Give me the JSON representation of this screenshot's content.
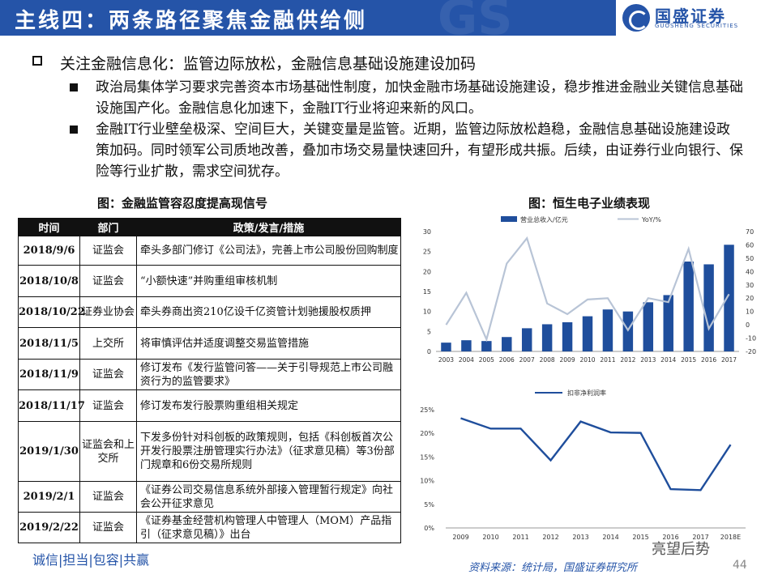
{
  "header": {
    "title": "主线四：两条路径聚焦金融供给侧",
    "logo_cn": "国盛证券",
    "logo_en": "GUOSHENG SECURITIES"
  },
  "bullets": {
    "main": "关注金融信息化：监管边际放松，金融信息基础设施建设加码",
    "sub1": "政治局集体学习要求完善资本市场基础性制度，加快金融市场基础设施建设，稳步推进金融业关键信息基础设施国产化。金融信息化加速下，金融IT行业将迎来新的风口。",
    "sub2": "金融IT行业壁垒极深、空间巨大，关键变量是监管。近期，监管边际放松趋稳，金融信息基础设施建设政策加码。同时领军公司质地改善，叠加市场交易量快速回升，有望形成共振。后续，由证券行业向银行、保险等行业扩散，需求空间犹存。"
  },
  "captions": {
    "table": "图：金融监管容忍度提高现信号",
    "chart": "图：恒生电子业绩表现"
  },
  "table": {
    "headers": [
      "时间",
      "部门",
      "政策/发言/措施"
    ],
    "rows": [
      {
        "date": "2018/9/6",
        "dept": "证监会",
        "text": "牵头多部门修订《公司法》，完善上市公司股份回购制度"
      },
      {
        "date": "2018/10/8",
        "dept": "证监会",
        "text": "“小额快速”并购重组审核机制"
      },
      {
        "date": "2018/10/22",
        "dept": "证券业协会",
        "text": "牵头券商出资210亿设千亿资管计划驰援股权质押"
      },
      {
        "date": "2018/11/5",
        "dept": "上交所",
        "text": "将审慎评估并适度调整交易监管措施"
      },
      {
        "date": "2018/11/9",
        "dept": "证监会",
        "text": "修订发布《发行监管问答——关于引导规范上市公司融资行为的监管要求》"
      },
      {
        "date": "2018/11/17",
        "dept": "证监会",
        "text": "修订发布发行股票购重组相关规定"
      },
      {
        "date": "2019/1/30",
        "dept": "证监会和上交所",
        "text": "下发多份针对科创板的政策规则，包括《科创板首次公开发行股票注册管理实行办法》（征求意见稿）等3份部门规章和6份交易所规则"
      },
      {
        "date": "2019/2/1",
        "dept": "证监会",
        "text": "《证券公司交易信息系统外部接入管理暂行规定》向社会公开征求意见"
      },
      {
        "date": "2019/2/22",
        "dept": "证监会",
        "text": "《证券基金经营机构管理人中管理人（MOM）产品指引（征求意见稿）》出台"
      }
    ]
  },
  "chart_data": [
    {
      "type": "bar",
      "categories": [
        "2003",
        "2004",
        "2005",
        "2006",
        "2007",
        "2008",
        "2009",
        "2010",
        "2011",
        "2012",
        "2013",
        "2014",
        "2015",
        "2016",
        "2017"
      ],
      "series": [
        {
          "name": "营业总收入/亿元",
          "type": "bar",
          "axis": "left",
          "color": "#1f4e9c",
          "values": [
            2.2,
            2.8,
            2.6,
            3.6,
            5.8,
            6.8,
            7.3,
            8.8,
            10.5,
            10.0,
            12.3,
            14.1,
            22.5,
            21.8,
            26.7
          ]
        },
        {
          "name": "YoY/%",
          "type": "line",
          "axis": "right",
          "color": "#b8c4d6",
          "values": [
            0,
            24,
            -11,
            46,
            65,
            16,
            8,
            19,
            20,
            -4,
            20,
            17,
            57,
            -3,
            23
          ]
        }
      ],
      "ylim_left": [
        0,
        30
      ],
      "yticks_left": [
        0,
        5,
        10,
        15,
        20,
        25,
        30
      ],
      "ylim_right": [
        -20,
        70
      ],
      "yticks_right": [
        -20,
        -10,
        0,
        10,
        20,
        30,
        40,
        50,
        60,
        70
      ],
      "legend": "top"
    },
    {
      "type": "line",
      "categories": [
        "2009",
        "2010",
        "2011",
        "2012",
        "2013",
        "2014",
        "2015",
        "2016",
        "2017",
        "2018E"
      ],
      "series": [
        {
          "name": "扣非净利润率",
          "color": "#1f4e9c",
          "values": [
            23.2,
            21.0,
            21.0,
            14.3,
            22.5,
            20.2,
            20.1,
            8.2,
            8.0,
            17.6
          ]
        }
      ],
      "ylim": [
        0,
        25
      ],
      "yticks": [
        "0%",
        "5%",
        "10%",
        "15%",
        "20%",
        "25%"
      ],
      "legend": "top"
    }
  ],
  "footer": {
    "left": "诚信|担当|包容|共赢",
    "source": "资料来源：统计局，国盛证券研究所",
    "watermark": "亮望后势",
    "page": "44"
  }
}
